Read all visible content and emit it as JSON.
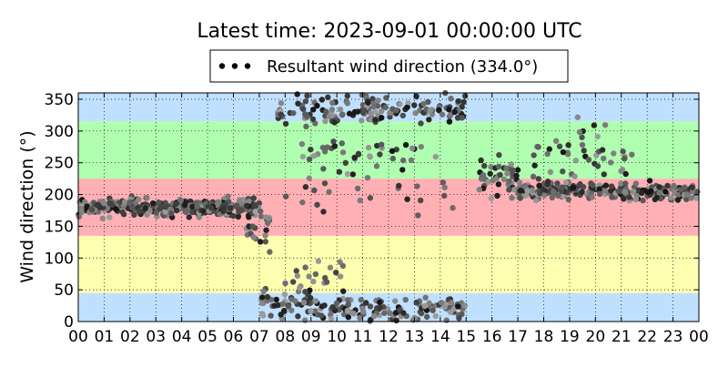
{
  "chart_data": {
    "type": "scatter",
    "title": "Latest time: 2023-09-01 00:00:00 UTC",
    "ylabel": "Wind direction (°)",
    "xlabel": "",
    "legend": {
      "label": "Resultant wind direction (334.0°)",
      "placement": "top-center",
      "marker_color": "#000000"
    },
    "xlim": [
      0,
      24
    ],
    "ylim": [
      0,
      360
    ],
    "x_ticks": [
      "00",
      "01",
      "02",
      "03",
      "04",
      "05",
      "06",
      "07",
      "08",
      "09",
      "10",
      "11",
      "12",
      "13",
      "14",
      "15",
      "16",
      "17",
      "18",
      "19",
      "20",
      "21",
      "22",
      "23",
      "00"
    ],
    "y_ticks": [
      0,
      50,
      100,
      150,
      200,
      250,
      300,
      350
    ],
    "grid": true,
    "bands": [
      {
        "from": 0,
        "to": 45,
        "color": "#c0e0ff"
      },
      {
        "from": 45,
        "to": 135,
        "color": "#ffffb0"
      },
      {
        "from": 135,
        "to": 225,
        "color": "#ffb0b4"
      },
      {
        "from": 225,
        "to": 315,
        "color": "#b0ffb0"
      },
      {
        "from": 315,
        "to": 360,
        "color": "#c0e0ff"
      }
    ],
    "clusters": [
      {
        "x_range": [
          0.0,
          7.0
        ],
        "y_center": 180,
        "y_spread": 14,
        "count": 320
      },
      {
        "x_range": [
          6.5,
          7.5
        ],
        "y_center": 150,
        "y_spread": 35,
        "count": 25
      },
      {
        "x_range": [
          7.0,
          9.5
        ],
        "y_center": 25,
        "y_spread": 25,
        "count": 60
      },
      {
        "x_range": [
          8.0,
          10.5
        ],
        "y_center": 70,
        "y_spread": 30,
        "count": 20
      },
      {
        "x_range": [
          9.5,
          15.0
        ],
        "y_center": 20,
        "y_spread": 20,
        "count": 110
      },
      {
        "x_range": [
          7.5,
          11.5
        ],
        "y_center": 330,
        "y_spread": 25,
        "count": 70
      },
      {
        "x_range": [
          11.0,
          15.0
        ],
        "y_center": 335,
        "y_spread": 20,
        "count": 80
      },
      {
        "x_range": [
          8.0,
          14.5
        ],
        "y_center": 215,
        "y_spread": 45,
        "count": 30
      },
      {
        "x_range": [
          8.5,
          13.5
        ],
        "y_center": 270,
        "y_spread": 25,
        "count": 35
      },
      {
        "x_range": [
          15.5,
          17.0
        ],
        "y_center": 225,
        "y_spread": 35,
        "count": 45
      },
      {
        "x_range": [
          17.0,
          24.0
        ],
        "y_center": 205,
        "y_spread": 12,
        "count": 260
      },
      {
        "x_range": [
          17.5,
          21.5
        ],
        "y_center": 260,
        "y_spread": 30,
        "count": 40
      },
      {
        "x_range": [
          19.0,
          20.5
        ],
        "y_center": 310,
        "y_spread": 20,
        "count": 6
      }
    ]
  }
}
